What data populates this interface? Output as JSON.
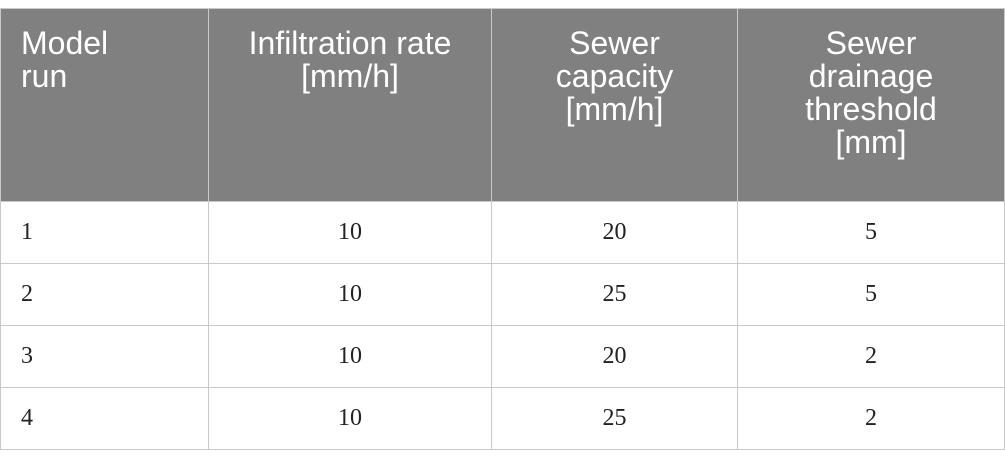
{
  "table": {
    "header": [
      "Model run",
      "Infiltration rate [mm/h]",
      "Sewer capacity [mm/h]",
      "Sewer drainage threshold [mm]"
    ],
    "rows": [
      [
        1,
        10,
        20,
        5
      ],
      [
        2,
        10,
        25,
        5
      ],
      [
        3,
        10,
        20,
        2
      ],
      [
        4,
        10,
        25,
        2
      ]
    ]
  }
}
